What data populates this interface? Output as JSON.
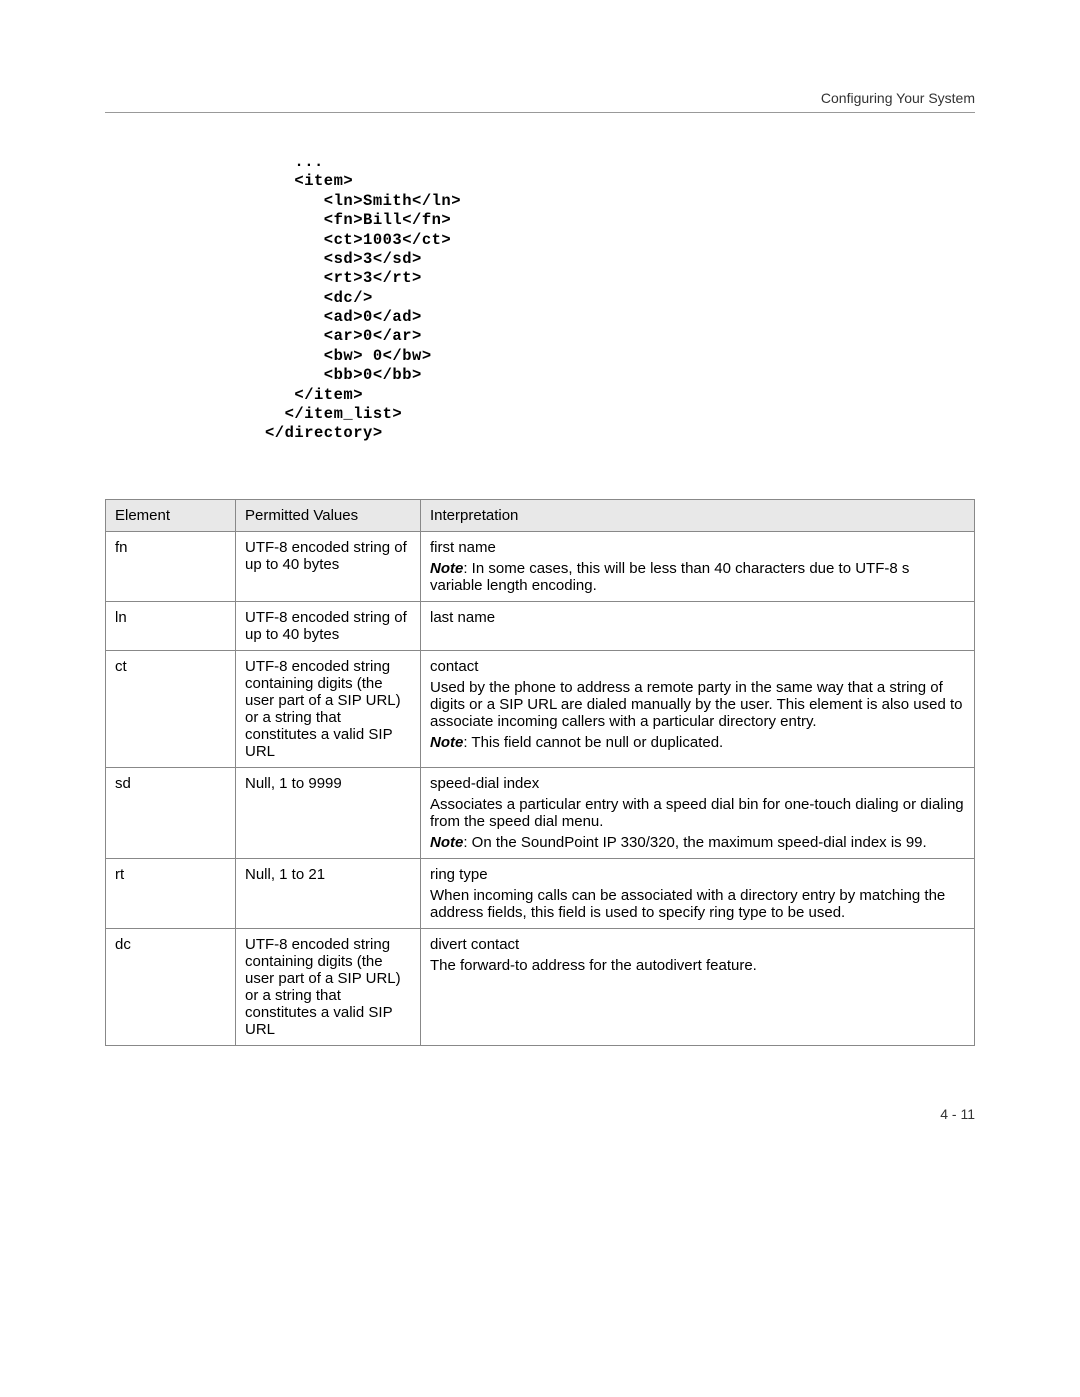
{
  "header": {
    "title": "Configuring Your System"
  },
  "code": "   ...\n   <item>\n      <ln>Smith</ln>\n      <fn>Bill</fn>\n      <ct>1003</ct>\n      <sd>3</sd>\n      <rt>3</rt>\n      <dc/>\n      <ad>0</ad>\n      <ar>0</ar>\n      <bw> 0</bw>\n      <bb>0</bb>\n   </item>\n  </item_list>\n</directory>",
  "table": {
    "headers": {
      "c1": "Element",
      "c2": "Permitted Values",
      "c3": "Interpretation"
    },
    "rows": [
      {
        "el": "fn",
        "pv": "UTF-8 encoded string of up to 40 bytes",
        "lead": "first name",
        "note": ": In some cases, this will be less than 40 characters due to UTF-8 s variable length encoding."
      },
      {
        "el": "ln",
        "pv": "UTF-8 encoded string of up to 40 bytes",
        "lead": "last name"
      },
      {
        "el": "ct",
        "pv": "UTF-8 encoded string containing digits (the user part of a SIP URL) or a string that constitutes a valid SIP URL",
        "lead": "contact",
        "body": "Used by the phone to address a remote party in the same way that a string of digits or a SIP URL are dialed manually by the user. This element is also used to associate incoming callers with a particular directory entry.",
        "note": ": This field cannot be null or duplicated."
      },
      {
        "el": "sd",
        "pv": "Null, 1 to 9999",
        "lead": "speed-dial index",
        "body": "Associates a particular entry with a speed dial bin for one-touch dialing or dialing from the speed dial menu.",
        "note": ": On the SoundPoint IP 330/320, the maximum speed-dial index is 99."
      },
      {
        "el": "rt",
        "pv": "Null, 1 to 21",
        "lead": "ring type",
        "body": "When incoming calls can be associated with a directory entry by matching the address fields, this field is used to specify ring type to be used."
      },
      {
        "el": "dc",
        "pv": "UTF-8 encoded string containing digits (the user part of a SIP URL) or a string that constitutes a valid SIP URL",
        "lead": "divert contact",
        "body": "The forward-to address for the autodivert feature."
      }
    ]
  },
  "note_label": "Note",
  "footer": {
    "page": "4 - 11"
  }
}
